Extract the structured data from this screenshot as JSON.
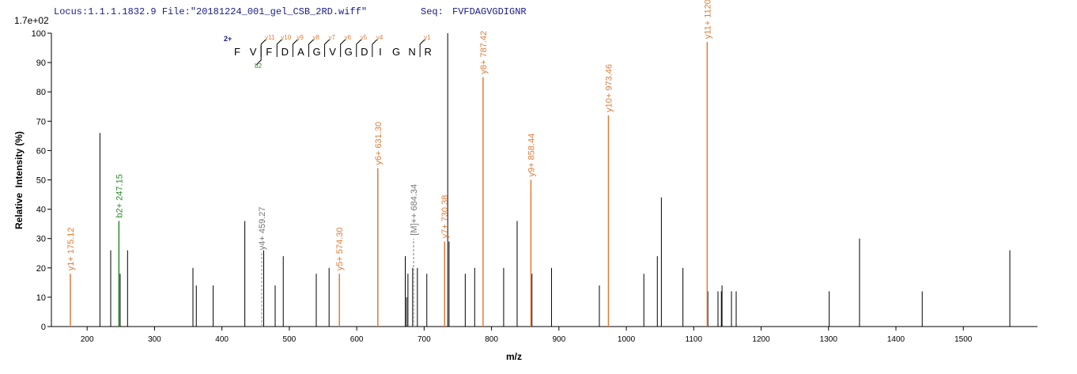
{
  "header": {
    "locus": "Locus:1.1.1.1832.9 File:\"20181224_001_gel_CSB_2RD.wiff\"",
    "seq_label": "Seq:",
    "seq": "FVFDAGVGDIGNR"
  },
  "chart_data": {
    "type": "spectrum",
    "scale_label": "1.7e+02",
    "xlabel": "m/z",
    "ylabel": "Relative  Intensity (%)",
    "xlim": [
      147,
      1610
    ],
    "ylim": [
      0,
      100
    ],
    "xticks": [
      200,
      300,
      400,
      500,
      600,
      700,
      800,
      900,
      1000,
      1100,
      1200,
      1300,
      1400,
      1500
    ],
    "yticks": [
      0,
      10,
      20,
      30,
      40,
      50,
      60,
      70,
      80,
      90,
      100
    ],
    "series": [
      {
        "color": "#000000",
        "x": [
          219,
          235,
          249,
          260,
          357,
          362,
          387,
          434,
          462,
          479,
          491,
          540,
          559,
          672,
          674,
          676,
          683,
          690,
          704,
          735,
          737,
          761,
          775,
          818,
          838,
          860,
          889,
          960,
          1026,
          1046,
          1052,
          1084,
          1121,
          1136,
          1141,
          1142,
          1156,
          1163,
          1301,
          1346,
          1439,
          1569
        ],
        "values": [
          66,
          26,
          18,
          26,
          20,
          14,
          14,
          36,
          26,
          14,
          24,
          18,
          20,
          24,
          10,
          18,
          20,
          20,
          18,
          100,
          29,
          18,
          20,
          20,
          36,
          18,
          20,
          14,
          18,
          24,
          44,
          20,
          12,
          12,
          12,
          14,
          12,
          12,
          12,
          30,
          12,
          26
        ]
      }
    ],
    "annotations": [
      {
        "label": "y1+ 175.12",
        "x": 175.12,
        "y": 18,
        "color": "#e07b39",
        "style": "solid"
      },
      {
        "label": "b2+ 247.15",
        "x": 247.15,
        "y": 36,
        "color": "#2a8a2a",
        "style": "solid"
      },
      {
        "label": "y4+ 459.27",
        "x": 459.27,
        "y": 25,
        "color": "#aaaaaa",
        "style": "dashed"
      },
      {
        "label": "y5+ 574.30",
        "x": 574.3,
        "y": 18,
        "color": "#e07b39",
        "style": "solid"
      },
      {
        "label": "y6+ 631.30",
        "x": 631.3,
        "y": 54,
        "color": "#e07b39",
        "style": "solid"
      },
      {
        "label": "[M]++ 684.34",
        "x": 684.34,
        "y": 30,
        "color": "#aaaaaa",
        "style": "dashed"
      },
      {
        "label": "y7+ 730.38",
        "x": 730.38,
        "y": 29,
        "color": "#e07b39",
        "style": "solid"
      },
      {
        "label": "y8+ 787.42",
        "x": 787.42,
        "y": 85,
        "color": "#e07b39",
        "style": "solid"
      },
      {
        "label": "y9+ 858.44",
        "x": 858.44,
        "y": 50,
        "color": "#e07b39",
        "style": "solid"
      },
      {
        "label": "y10+ 973.46",
        "x": 973.46,
        "y": 72,
        "color": "#e07b39",
        "style": "solid"
      },
      {
        "label": "y11+ 1120",
        "x": 1120,
        "y": 97,
        "color": "#e07b39",
        "style": "solid"
      }
    ]
  },
  "sequence": {
    "charge": "2+",
    "residues": [
      "F",
      "V",
      "F",
      "D",
      "A",
      "G",
      "V",
      "G",
      "D",
      "I",
      "G",
      "N",
      "R"
    ],
    "y_ions": [
      null,
      "y11",
      "y10",
      "y9",
      "y8",
      "y7",
      "y6",
      "y5",
      "y4",
      null,
      null,
      "y1"
    ],
    "b_ions": [
      null,
      "b2",
      null,
      null,
      null,
      null,
      null,
      null,
      null,
      null,
      null,
      null
    ]
  }
}
